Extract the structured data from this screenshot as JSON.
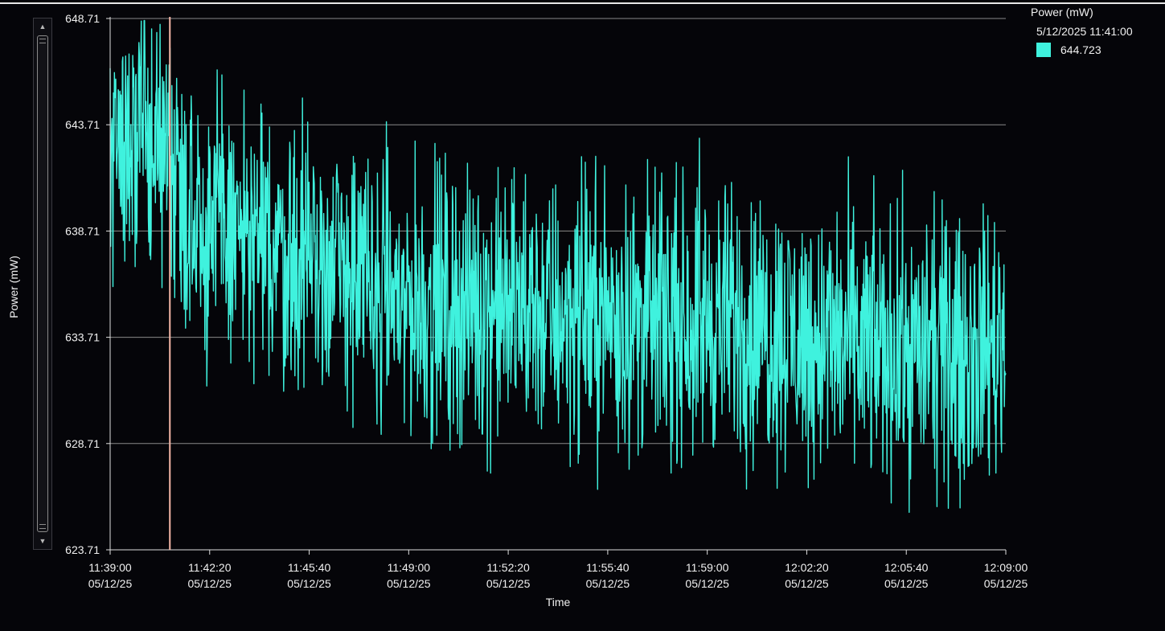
{
  "chart_data": {
    "type": "line",
    "title": "",
    "xlabel": "Time",
    "ylabel": "Power (mW)",
    "ylim": [
      623.71,
      648.71
    ],
    "y_ticks": [
      "648.71",
      "643.71",
      "638.71",
      "633.71",
      "628.71",
      "623.71"
    ],
    "y_gridlines": [
      648.71,
      643.71,
      638.71,
      633.71,
      628.71
    ],
    "xlim": [
      "11:39:00",
      "12:09:00"
    ],
    "x_ticks": [
      {
        "time": "11:39:00",
        "date": "05/12/25"
      },
      {
        "time": "11:42:20",
        "date": "05/12/25"
      },
      {
        "time": "11:45:40",
        "date": "05/12/25"
      },
      {
        "time": "11:49:00",
        "date": "05/12/25"
      },
      {
        "time": "11:52:20",
        "date": "05/12/25"
      },
      {
        "time": "11:55:40",
        "date": "05/12/25"
      },
      {
        "time": "11:59:00",
        "date": "05/12/25"
      },
      {
        "time": "12:02:20",
        "date": "05/12/25"
      },
      {
        "time": "12:05:40",
        "date": "05/12/25"
      },
      {
        "time": "12:09:00",
        "date": "05/12/25"
      }
    ],
    "series": [
      {
        "name": "Power (mW)",
        "color": "#3ff2de",
        "style": "noisy dense trace, sampled trend",
        "x": [
          "11:39:00",
          "11:40:00",
          "11:41:00",
          "11:42:00",
          "11:43:00",
          "11:44:00",
          "11:45:00",
          "11:46:00",
          "11:47:00",
          "11:48:00",
          "11:49:00",
          "11:50:00",
          "11:51:00",
          "11:52:00",
          "11:53:00",
          "11:54:00",
          "11:55:00",
          "11:56:00",
          "11:57:00",
          "11:58:00",
          "11:59:00",
          "12:00:00",
          "12:01:00",
          "12:02:00",
          "12:03:00",
          "12:04:00",
          "12:05:00",
          "12:06:00",
          "12:07:00",
          "12:08:00",
          "12:09:00"
        ],
        "values": [
          643.2,
          642.9,
          642.3,
          639.4,
          638.9,
          638.0,
          637.6,
          637.2,
          636.8,
          635.9,
          635.5,
          635.3,
          635.2,
          635.1,
          635.0,
          634.8,
          634.9,
          634.7,
          634.6,
          634.6,
          634.5,
          634.4,
          634.1,
          633.8,
          633.6,
          633.4,
          633.2,
          633.1,
          633.0,
          633.3,
          633.6
        ],
        "noise_range": [
          -6.5,
          6.5
        ]
      }
    ],
    "cursor": {
      "time": "11:41:00",
      "color": "#f7b8a8"
    },
    "grid": true,
    "legend_position": "top-right",
    "background": "#050509",
    "gridline_color": "#b4b4b4"
  },
  "legend": {
    "title": "Power (mW)",
    "timestamp": "5/12/2025 11:41:00",
    "value": "644.723",
    "swatch_color": "#3ff2de"
  },
  "scrollbar": {
    "up_icon": "chevron-up-icon",
    "down_icon": "chevron-down-icon"
  }
}
